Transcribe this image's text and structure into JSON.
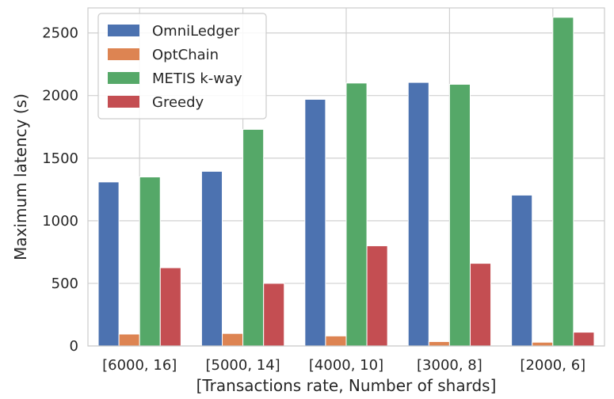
{
  "chart_data": {
    "type": "bar",
    "title": "",
    "xlabel": "[Transactions rate, Number of shards]",
    "ylabel": "Maximum latency (s)",
    "categories": [
      "[6000, 16]",
      "[5000, 14]",
      "[4000, 10]",
      "[3000, 8]",
      "[2000, 6]"
    ],
    "ylim": [
      0,
      2700
    ],
    "yticks": [
      0,
      500,
      1000,
      1500,
      2000,
      2500
    ],
    "grid": true,
    "legend_position": "top-left",
    "series": [
      {
        "name": "OmniLedger",
        "color": "#4c72b0",
        "values": [
          1310,
          1395,
          1970,
          2105,
          1205
        ]
      },
      {
        "name": "OptChain",
        "color": "#dd8452",
        "values": [
          95,
          100,
          80,
          35,
          30
        ]
      },
      {
        "name": "METIS k-way",
        "color": "#55a868",
        "values": [
          1350,
          1730,
          2100,
          2090,
          2625
        ]
      },
      {
        "name": "Greedy",
        "color": "#c44e52",
        "values": [
          625,
          500,
          800,
          660,
          110
        ]
      }
    ]
  }
}
